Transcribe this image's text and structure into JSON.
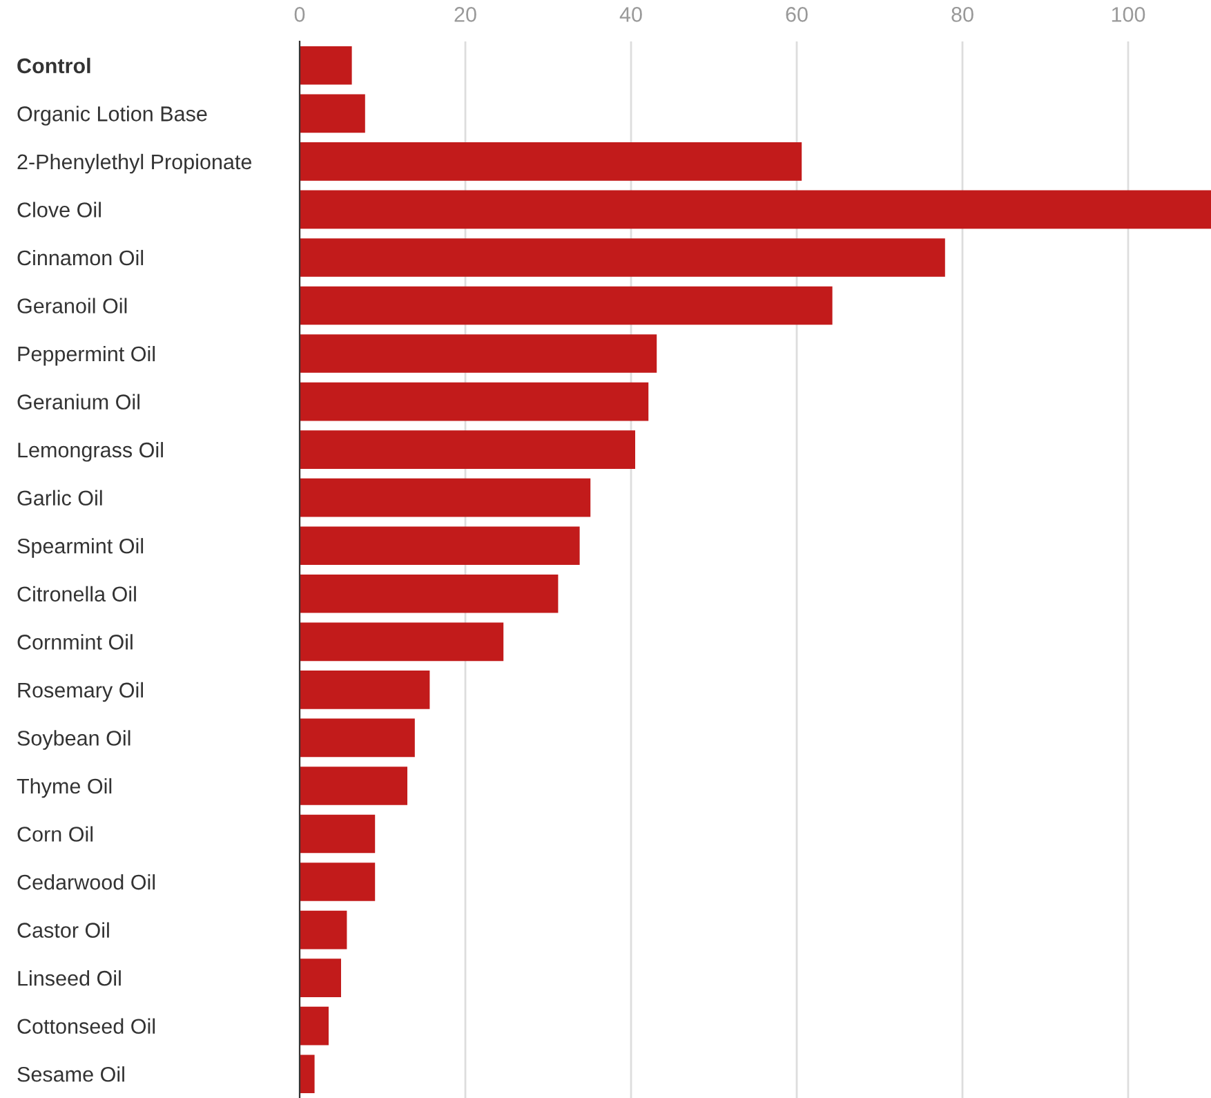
{
  "chart_data": {
    "type": "bar",
    "orientation": "horizontal",
    "categories": [
      "Control",
      "Organic Lotion Base",
      "2-Phenylethyl Propionate",
      "Clove Oil",
      "Cinnamon Oil",
      "Geranoil Oil",
      "Peppermint Oil",
      "Geranium Oil",
      "Lemongrass Oil",
      "Garlic Oil",
      "Spearmint Oil",
      "Citronella Oil",
      "Cornmint Oil",
      "Rosemary Oil",
      "Soybean Oil",
      "Thyme Oil",
      "Corn Oil",
      "Cedarwood Oil",
      "Castor Oil",
      "Linseed Oil",
      "Cottonseed Oil",
      "Sesame Oil"
    ],
    "values": [
      6.3,
      7.9,
      60.6,
      110,
      77.9,
      64.3,
      43.1,
      42.1,
      40.5,
      35.1,
      33.8,
      31.2,
      24.6,
      15.7,
      13.9,
      13.0,
      9.1,
      9.1,
      5.7,
      5.0,
      3.5,
      1.8
    ],
    "color": "#c21b1b",
    "xlim": [
      0,
      110
    ],
    "xticks": [
      0,
      20,
      40,
      60,
      80,
      100
    ],
    "grid": "x",
    "legend": false
  }
}
